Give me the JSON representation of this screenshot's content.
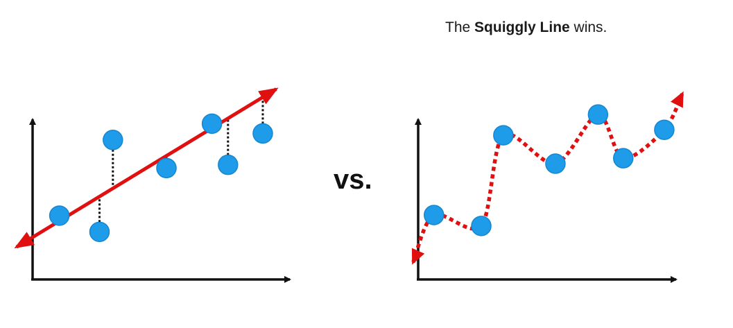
{
  "caption": {
    "prefix": "The",
    "emphasis": "Squiggly Line",
    "suffix": "wins."
  },
  "separator_label": "vs.",
  "colors": {
    "point": "#1e9be9",
    "point_stroke": "#1587d1",
    "fit_line": "#e01010",
    "axis": "#111111",
    "residual": "#111111"
  },
  "panels": [
    {
      "name": "straight-line-fit",
      "fit": "straight",
      "points": [
        {
          "x": 1.0,
          "y": 2.95
        },
        {
          "x": 2.5,
          "y": 2.2
        },
        {
          "x": 3.0,
          "y": 6.45
        },
        {
          "x": 5.0,
          "y": 5.15
        },
        {
          "x": 6.7,
          "y": 7.2
        },
        {
          "x": 7.3,
          "y": 5.3
        },
        {
          "x": 8.6,
          "y": 6.75
        }
      ],
      "line": {
        "x_start": -0.6,
        "y_start": 1.5,
        "x_end": 9.1,
        "y_end": 8.8
      }
    },
    {
      "name": "squiggly-line-fit",
      "fit": "squiggly",
      "points": [
        {
          "x": 0.5,
          "y": 2.95
        },
        {
          "x": 2.0,
          "y": 2.45
        },
        {
          "x": 2.7,
          "y": 6.6
        },
        {
          "x": 4.35,
          "y": 5.3
        },
        {
          "x": 5.7,
          "y": 7.55
        },
        {
          "x": 6.5,
          "y": 5.55
        },
        {
          "x": 7.8,
          "y": 6.85
        }
      ]
    }
  ]
}
